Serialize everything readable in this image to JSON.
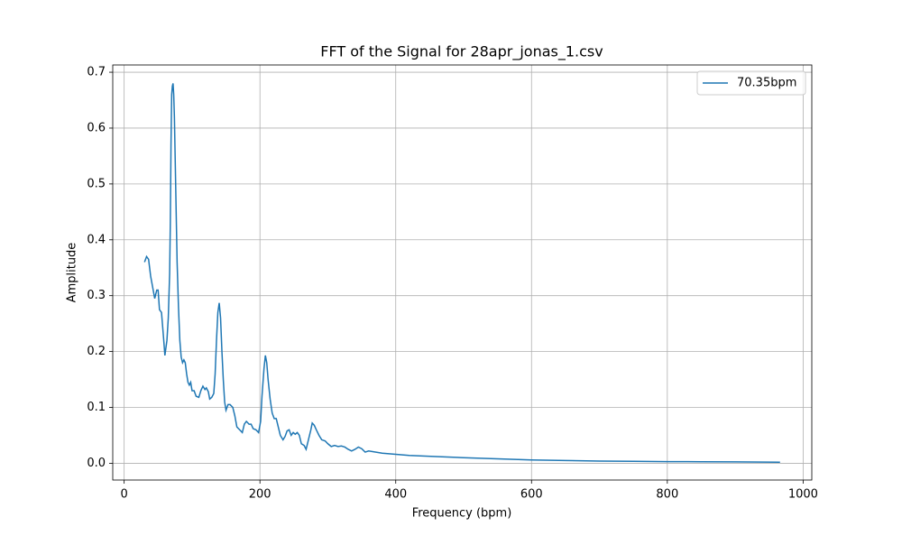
{
  "chart_data": {
    "type": "line",
    "title": "FFT of the Signal for 28apr_jonas_1.csv",
    "x_label": "Frequency (bpm)",
    "y_label": "Amplitude",
    "x": [
      30,
      33,
      36,
      39,
      42,
      45,
      48,
      50,
      52,
      55,
      58,
      60,
      63,
      65,
      67,
      68,
      69,
      70,
      71,
      72,
      73,
      74,
      76,
      78,
      80,
      82,
      84,
      86,
      88,
      90,
      92,
      94,
      96,
      98,
      100,
      103,
      106,
      110,
      113,
      116,
      119,
      121,
      124,
      126,
      129,
      132,
      134,
      136,
      138,
      140,
      142,
      144,
      146,
      148,
      150,
      153,
      156,
      160,
      163,
      166,
      170,
      174,
      177,
      180,
      184,
      187,
      190,
      194,
      198,
      201,
      203,
      206,
      208,
      210,
      212,
      215,
      218,
      221,
      224,
      227,
      230,
      234,
      237,
      240,
      243,
      246,
      249,
      252,
      255,
      258,
      261,
      265,
      268,
      271,
      275,
      277,
      280,
      283,
      287,
      291,
      296,
      300,
      305,
      310,
      315,
      320,
      325,
      330,
      335,
      340,
      345,
      350,
      355,
      360,
      370,
      380,
      390,
      400,
      420,
      440,
      460,
      500,
      550,
      600,
      650,
      700,
      750,
      800,
      850,
      900,
      966
    ],
    "series": [
      {
        "name": "70.35bpm",
        "color": "#1f77b4",
        "values": [
          0.36,
          0.37,
          0.365,
          0.335,
          0.315,
          0.295,
          0.31,
          0.31,
          0.275,
          0.27,
          0.225,
          0.193,
          0.22,
          0.26,
          0.34,
          0.43,
          0.57,
          0.66,
          0.675,
          0.68,
          0.66,
          0.62,
          0.49,
          0.36,
          0.28,
          0.22,
          0.19,
          0.18,
          0.185,
          0.18,
          0.16,
          0.145,
          0.14,
          0.145,
          0.13,
          0.13,
          0.12,
          0.118,
          0.13,
          0.138,
          0.132,
          0.135,
          0.128,
          0.115,
          0.118,
          0.125,
          0.16,
          0.22,
          0.27,
          0.287,
          0.26,
          0.2,
          0.15,
          0.11,
          0.095,
          0.105,
          0.105,
          0.1,
          0.085,
          0.065,
          0.06,
          0.055,
          0.07,
          0.075,
          0.07,
          0.07,
          0.062,
          0.06,
          0.055,
          0.075,
          0.12,
          0.17,
          0.193,
          0.18,
          0.15,
          0.115,
          0.09,
          0.08,
          0.08,
          0.065,
          0.05,
          0.042,
          0.048,
          0.058,
          0.06,
          0.05,
          0.055,
          0.052,
          0.055,
          0.05,
          0.035,
          0.032,
          0.025,
          0.04,
          0.06,
          0.072,
          0.068,
          0.06,
          0.05,
          0.042,
          0.04,
          0.035,
          0.03,
          0.032,
          0.03,
          0.031,
          0.029,
          0.025,
          0.022,
          0.025,
          0.029,
          0.026,
          0.02,
          0.022,
          0.02,
          0.018,
          0.017,
          0.016,
          0.014,
          0.013,
          0.012,
          0.01,
          0.008,
          0.006,
          0.005,
          0.004,
          0.0035,
          0.003,
          0.0028,
          0.0025,
          0.002
        ]
      }
    ],
    "xlim": [
      -16.8,
      1012.8
    ],
    "xticks": [
      0,
      200,
      400,
      600,
      800,
      1000
    ],
    "ylim": [
      -0.03,
      0.713
    ],
    "yticks": [
      {
        "value": 0,
        "label": "0.0"
      },
      0.1,
      0.2,
      0.3,
      0.4,
      0.5,
      0.6,
      0.7
    ],
    "grid": true,
    "legend": "upper right"
  }
}
